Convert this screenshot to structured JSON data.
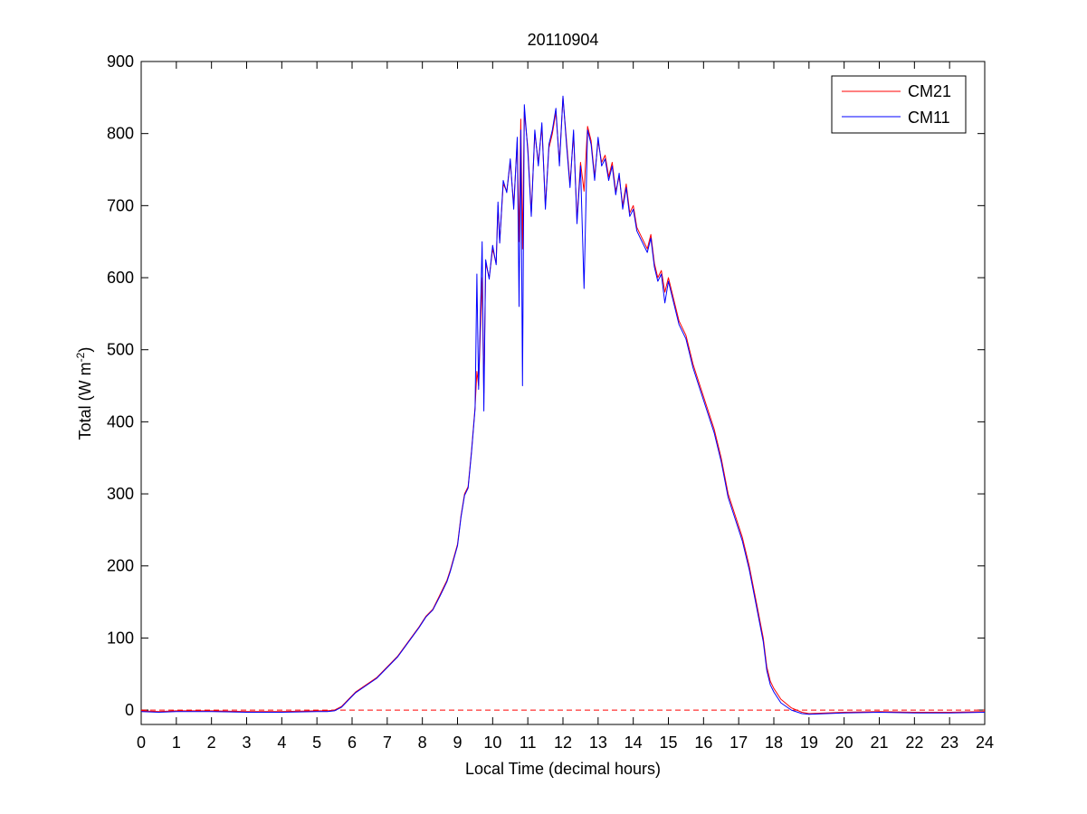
{
  "chart_data": {
    "type": "line",
    "title": "20110904",
    "xlabel": "Local Time (decimal hours)",
    "ylabel": "Total (W m-2)",
    "ylabel_parts": {
      "main": "Total (W m",
      "superscript": "-2",
      "tail": ")"
    },
    "xlim": [
      0,
      24
    ],
    "ylim": [
      -20,
      900
    ],
    "xticks": [
      0,
      1,
      2,
      3,
      4,
      5,
      6,
      7,
      8,
      9,
      10,
      11,
      12,
      13,
      14,
      15,
      16,
      17,
      18,
      19,
      20,
      21,
      22,
      23,
      24
    ],
    "yticks": [
      0,
      100,
      200,
      300,
      400,
      500,
      600,
      700,
      800,
      900
    ],
    "grid": false,
    "legend_position": "top-right",
    "reference_line": {
      "y": 0,
      "style": "dashed",
      "color": "#ff0000"
    },
    "series": [
      {
        "name": "CM21",
        "color": "#ff0000",
        "x": [
          0,
          0.5,
          1,
          2,
          3,
          4,
          5,
          5.3,
          5.5,
          5.7,
          5.9,
          6.1,
          6.4,
          6.7,
          7.0,
          7.3,
          7.6,
          7.9,
          8.1,
          8.3,
          8.5,
          8.7,
          8.8,
          9.0,
          9.1,
          9.2,
          9.3,
          9.4,
          9.5,
          9.55,
          9.6,
          9.7,
          9.75,
          9.8,
          9.9,
          10.0,
          10.1,
          10.15,
          10.2,
          10.3,
          10.4,
          10.5,
          10.6,
          10.7,
          10.75,
          10.8,
          10.85,
          10.9,
          11.0,
          11.1,
          11.2,
          11.3,
          11.4,
          11.5,
          11.6,
          11.7,
          11.8,
          11.9,
          12.0,
          12.1,
          12.2,
          12.3,
          12.4,
          12.5,
          12.6,
          12.7,
          12.8,
          12.9,
          13.0,
          13.1,
          13.2,
          13.3,
          13.4,
          13.5,
          13.6,
          13.7,
          13.8,
          13.9,
          14.0,
          14.1,
          14.2,
          14.3,
          14.4,
          14.5,
          14.6,
          14.7,
          14.8,
          14.9,
          15.0,
          15.1,
          15.2,
          15.3,
          15.5,
          15.7,
          15.9,
          16.1,
          16.3,
          16.5,
          16.7,
          16.9,
          17.1,
          17.3,
          17.5,
          17.7,
          17.8,
          17.9,
          18.0,
          18.2,
          18.5,
          18.8,
          19.0,
          19.5,
          20.0,
          21.0,
          22.0,
          23.0,
          24.0
        ],
        "y": [
          -1,
          -2,
          -1,
          -1,
          -2,
          -2,
          -1,
          -1,
          0,
          5,
          15,
          25,
          35,
          45,
          60,
          75,
          95,
          115,
          130,
          140,
          160,
          180,
          195,
          230,
          270,
          300,
          310,
          360,
          420,
          470,
          450,
          600,
          440,
          620,
          600,
          640,
          620,
          700,
          650,
          730,
          720,
          760,
          700,
          790,
          650,
          820,
          640,
          830,
          780,
          690,
          800,
          760,
          810,
          700,
          780,
          800,
          830,
          760,
          850,
          790,
          730,
          800,
          680,
          760,
          720,
          810,
          790,
          740,
          790,
          760,
          770,
          740,
          760,
          720,
          740,
          700,
          730,
          690,
          700,
          670,
          660,
          650,
          640,
          660,
          620,
          600,
          610,
          580,
          600,
          580,
          560,
          540,
          520,
          480,
          450,
          420,
          390,
          350,
          300,
          270,
          240,
          200,
          150,
          100,
          60,
          40,
          30,
          15,
          3,
          -3,
          -5,
          -4,
          -3,
          -2,
          -3,
          -3,
          -2
        ],
        "line_width": 1
      },
      {
        "name": "CM11",
        "color": "#0000ff",
        "x": [
          0,
          0.5,
          1,
          2,
          3,
          4,
          5,
          5.3,
          5.5,
          5.7,
          5.9,
          6.1,
          6.4,
          6.7,
          7.0,
          7.3,
          7.6,
          7.9,
          8.1,
          8.3,
          8.5,
          8.7,
          8.8,
          9.0,
          9.1,
          9.2,
          9.3,
          9.4,
          9.5,
          9.55,
          9.6,
          9.7,
          9.75,
          9.8,
          9.9,
          10.0,
          10.1,
          10.15,
          10.2,
          10.3,
          10.4,
          10.5,
          10.6,
          10.7,
          10.75,
          10.8,
          10.85,
          10.9,
          11.0,
          11.1,
          11.2,
          11.3,
          11.4,
          11.5,
          11.6,
          11.7,
          11.8,
          11.9,
          12.0,
          12.1,
          12.2,
          12.3,
          12.4,
          12.5,
          12.6,
          12.7,
          12.8,
          12.9,
          13.0,
          13.1,
          13.2,
          13.3,
          13.4,
          13.5,
          13.6,
          13.7,
          13.8,
          13.9,
          14.0,
          14.1,
          14.2,
          14.3,
          14.4,
          14.5,
          14.6,
          14.7,
          14.8,
          14.9,
          15.0,
          15.1,
          15.2,
          15.3,
          15.5,
          15.7,
          15.9,
          16.1,
          16.3,
          16.5,
          16.7,
          16.9,
          17.1,
          17.3,
          17.5,
          17.7,
          17.8,
          17.9,
          18.0,
          18.2,
          18.5,
          18.8,
          19.0,
          19.5,
          20.0,
          21.0,
          22.0,
          23.0,
          24.0
        ],
        "y": [
          -2,
          -3,
          -2,
          -2,
          -3,
          -3,
          -2,
          -2,
          -1,
          4,
          14,
          24,
          34,
          44,
          59,
          74,
          94,
          114,
          129,
          139,
          158,
          178,
          193,
          228,
          268,
          298,
          308,
          358,
          418,
          605,
          445,
          650,
          415,
          625,
          598,
          645,
          618,
          705,
          648,
          735,
          718,
          765,
          695,
          795,
          560,
          805,
          450,
          840,
          775,
          685,
          805,
          755,
          815,
          695,
          785,
          805,
          835,
          755,
          852,
          785,
          725,
          805,
          675,
          755,
          585,
          805,
          785,
          735,
          795,
          755,
          765,
          735,
          755,
          715,
          745,
          695,
          725,
          685,
          695,
          665,
          655,
          645,
          635,
          655,
          615,
          595,
          605,
          565,
          595,
          575,
          555,
          535,
          515,
          475,
          445,
          415,
          385,
          345,
          295,
          265,
          235,
          195,
          145,
          95,
          55,
          35,
          25,
          10,
          0,
          -5,
          -6,
          -5,
          -4,
          -3,
          -4,
          -4,
          -3
        ],
        "line_width": 1
      }
    ]
  }
}
